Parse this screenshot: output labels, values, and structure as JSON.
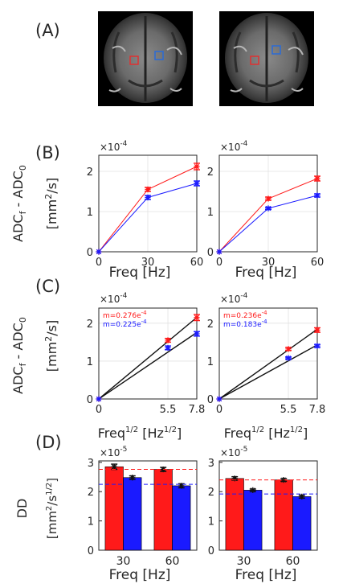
{
  "panel_labels": [
    "(A)",
    "(B)",
    "(C)",
    "(D)"
  ],
  "colors": {
    "red": "#ff1a1a",
    "blue": "#1a1aff",
    "black": "#111111",
    "axis": "#262626"
  },
  "row_B": {
    "ylabel_main": "ADC",
    "ylabel_sub1": "f",
    "ylabel_mid": " - ADC",
    "ylabel_sub2": "0",
    "yunit_pre": "[mm",
    "yunit_sup": "2",
    "yunit_post": "/s]",
    "xlabel": "Freq [Hz]",
    "scale_base": "×10",
    "scale_exp": "-4"
  },
  "row_C": {
    "xlabel_pre": "Freq",
    "xlabel_sup": "1/2",
    "xlabel_mid": " [Hz",
    "xlabel_sup2": "1/2",
    "xlabel_post": "]"
  },
  "row_D": {
    "ylabel": "DD",
    "yunit_pre": "[mm",
    "yunit_sup": "2",
    "yunit_mid": "/s",
    "yunit_sup2": "1/2",
    "yunit_post": "]",
    "xlabel": "Freq [Hz]",
    "scale_base": "×10",
    "scale_exp": "-5"
  },
  "chart_data": [
    {
      "panel": "B-left",
      "type": "line",
      "x": [
        0,
        30,
        60
      ],
      "xticks": [
        "0",
        "30",
        "60"
      ],
      "xlim": [
        0,
        60
      ],
      "yticks": [
        "0",
        "1",
        "2"
      ],
      "ylim": [
        0,
        2.4
      ],
      "grid": true,
      "series": [
        {
          "color": "red",
          "y": [
            0,
            1.55,
            2.12
          ],
          "err": [
            0,
            0.05,
            0.08
          ]
        },
        {
          "color": "blue",
          "y": [
            0,
            1.35,
            1.7
          ],
          "err": [
            0,
            0.05,
            0.06
          ]
        }
      ]
    },
    {
      "panel": "B-right",
      "type": "line",
      "x": [
        0,
        30,
        60
      ],
      "xticks": [
        "0",
        "30",
        "60"
      ],
      "xlim": [
        0,
        60
      ],
      "yticks": [
        "0",
        "1",
        "2"
      ],
      "ylim": [
        0,
        2.4
      ],
      "grid": true,
      "series": [
        {
          "color": "red",
          "y": [
            0,
            1.32,
            1.82
          ],
          "err": [
            0,
            0.04,
            0.06
          ]
        },
        {
          "color": "blue",
          "y": [
            0,
            1.08,
            1.4
          ],
          "err": [
            0,
            0.03,
            0.04
          ]
        }
      ]
    },
    {
      "panel": "C-left",
      "type": "scatter",
      "x": [
        0,
        5.5,
        7.8
      ],
      "xticks": [
        "0",
        "5.5",
        "7.8"
      ],
      "xlim": [
        0,
        7.8
      ],
      "yticks": [
        "0",
        "1",
        "2"
      ],
      "ylim": [
        0,
        2.4
      ],
      "grid": true,
      "fits": [
        {
          "color": "red",
          "label": "m=0.276e",
          "label_exp": "-4",
          "slope": 0.276
        },
        {
          "color": "blue",
          "label": "m=0.225e",
          "label_exp": "-4",
          "slope": 0.225
        }
      ],
      "series": [
        {
          "color": "red",
          "y": [
            0,
            1.55,
            2.15
          ],
          "err": [
            0,
            0.05,
            0.08
          ]
        },
        {
          "color": "blue",
          "y": [
            0,
            1.35,
            1.72
          ],
          "err": [
            0,
            0.05,
            0.06
          ]
        }
      ]
    },
    {
      "panel": "C-right",
      "type": "scatter",
      "x": [
        0,
        5.5,
        7.8
      ],
      "xticks": [
        "0",
        "5.5",
        "7.8"
      ],
      "xlim": [
        0,
        7.8
      ],
      "yticks": [
        "0",
        "1",
        "2"
      ],
      "ylim": [
        0,
        2.4
      ],
      "grid": true,
      "fits": [
        {
          "color": "red",
          "label": "m=0.236e",
          "label_exp": "-4",
          "slope": 0.236
        },
        {
          "color": "blue",
          "label": "m=0.183e",
          "label_exp": "-4",
          "slope": 0.183
        }
      ],
      "series": [
        {
          "color": "red",
          "y": [
            0,
            1.32,
            1.82
          ],
          "err": [
            0,
            0.04,
            0.06
          ]
        },
        {
          "color": "blue",
          "y": [
            0,
            1.08,
            1.4
          ],
          "err": [
            0,
            0.03,
            0.04
          ]
        }
      ]
    },
    {
      "panel": "D-left",
      "type": "bar",
      "categories": [
        "30",
        "60"
      ],
      "yticks": [
        "0",
        "1",
        "2",
        "3"
      ],
      "ylim": [
        0,
        3.05
      ],
      "series": [
        {
          "color": "red",
          "values": [
            2.85,
            2.76
          ],
          "err": [
            0.09,
            0.07
          ],
          "ref": 2.76
        },
        {
          "color": "blue",
          "values": [
            2.48,
            2.2
          ],
          "err": [
            0.06,
            0.07
          ],
          "ref": 2.25
        }
      ]
    },
    {
      "panel": "D-right",
      "type": "bar",
      "categories": [
        "30",
        "60"
      ],
      "yticks": [
        "0",
        "1",
        "2",
        "3"
      ],
      "ylim": [
        0,
        3.05
      ],
      "series": [
        {
          "color": "red",
          "values": [
            2.45,
            2.4
          ],
          "err": [
            0.06,
            0.05
          ],
          "ref": 2.4
        },
        {
          "color": "blue",
          "values": [
            2.05,
            1.83
          ],
          "err": [
            0.04,
            0.05
          ],
          "ref": 1.92
        }
      ]
    }
  ]
}
